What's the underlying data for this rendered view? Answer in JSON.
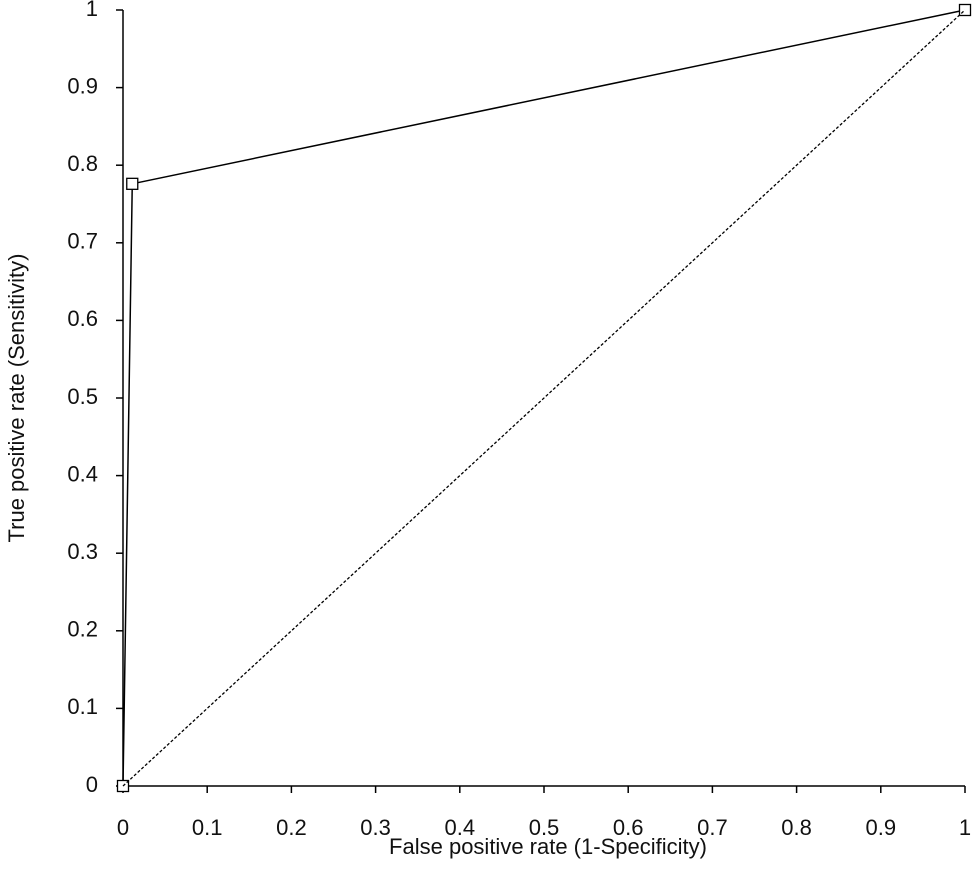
{
  "chart_data": {
    "type": "line",
    "x_label": "False positive rate (1-Specificity)",
    "y_label": "True positive rate (Sensitivity)",
    "xlim": [
      0,
      1
    ],
    "ylim": [
      0,
      1
    ],
    "xticks": [
      0,
      0.1,
      0.2,
      0.3,
      0.4,
      0.5,
      0.6,
      0.7,
      0.8,
      0.9,
      1
    ],
    "yticks": [
      0,
      0.1,
      0.2,
      0.3,
      0.4,
      0.5,
      0.6,
      0.7,
      0.8,
      0.9,
      1
    ],
    "grid": false,
    "series": [
      {
        "color": "#000000",
        "marker": "square",
        "line_style": "solid",
        "x": [
          0,
          0.011,
          1
        ],
        "values": [
          0,
          0.776,
          1
        ]
      },
      {
        "color": "#000000",
        "marker": "none",
        "line_style": "dotted",
        "x": [
          0,
          1
        ],
        "values": [
          0,
          1
        ]
      }
    ]
  }
}
